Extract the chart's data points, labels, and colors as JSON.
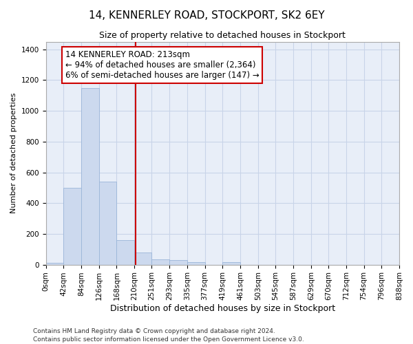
{
  "title": "14, KENNERLEY ROAD, STOCKPORT, SK2 6EY",
  "subtitle": "Size of property relative to detached houses in Stockport",
  "xlabel": "Distribution of detached houses by size in Stockport",
  "ylabel": "Number of detached properties",
  "footer_line1": "Contains HM Land Registry data © Crown copyright and database right 2024.",
  "footer_line2": "Contains public sector information licensed under the Open Government Licence v3.0.",
  "bar_edges": [
    0,
    42,
    84,
    126,
    168,
    210,
    251,
    293,
    335,
    377,
    419,
    461,
    503,
    545,
    587,
    629,
    670,
    712,
    754,
    796,
    838
  ],
  "bar_values": [
    10,
    500,
    1150,
    540,
    160,
    80,
    35,
    28,
    18,
    0,
    15,
    0,
    0,
    0,
    0,
    0,
    0,
    0,
    0,
    0
  ],
  "property_size": 213,
  "bar_color": "#ccd9ee",
  "bar_edge_color": "#9ab5d8",
  "vline_color": "#cc0000",
  "vline_x": 213,
  "annotation_text": "14 KENNERLEY ROAD: 213sqm\n← 94% of detached houses are smaller (2,364)\n6% of semi-detached houses are larger (147) →",
  "annotation_box_color": "#cc0000",
  "ylim": [
    0,
    1450
  ],
  "yticks": [
    0,
    200,
    400,
    600,
    800,
    1000,
    1200,
    1400
  ],
  "grid_color": "#c8d4e8",
  "background_color": "#e8eef8",
  "tick_labels": [
    "0sqm",
    "42sqm",
    "84sqm",
    "126sqm",
    "168sqm",
    "210sqm",
    "251sqm",
    "293sqm",
    "335sqm",
    "377sqm",
    "419sqm",
    "461sqm",
    "503sqm",
    "545sqm",
    "587sqm",
    "629sqm",
    "670sqm",
    "712sqm",
    "754sqm",
    "796sqm",
    "838sqm"
  ],
  "title_fontsize": 11,
  "subtitle_fontsize": 9,
  "ylabel_fontsize": 8,
  "xlabel_fontsize": 9,
  "tick_fontsize": 7.5,
  "footer_fontsize": 6.5,
  "annot_fontsize": 8.5
}
